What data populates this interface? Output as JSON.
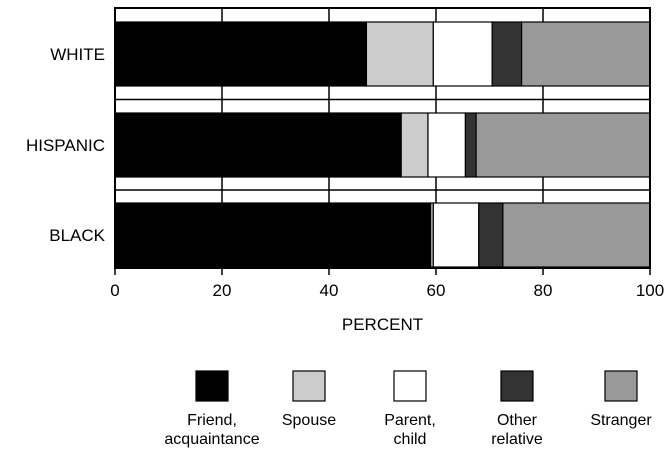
{
  "chart_data": {
    "type": "bar",
    "orientation": "horizontal",
    "stacked": true,
    "categories": [
      "WHITE",
      "HISPANIC",
      "BLACK"
    ],
    "series": [
      {
        "name": "Friend, acquaintance",
        "color": "#000000",
        "values": [
          47,
          53.5,
          59
        ]
      },
      {
        "name": "Spouse",
        "color": "#cccccc",
        "values": [
          12.5,
          5,
          0.5
        ]
      },
      {
        "name": "Parent, child",
        "color": "#ffffff",
        "values": [
          11,
          7,
          8.5
        ]
      },
      {
        "name": "Other relative",
        "color": "#333333",
        "values": [
          5.5,
          2,
          4.5
        ]
      },
      {
        "name": "Stranger",
        "color": "#999999",
        "values": [
          24,
          32.5,
          27.5
        ]
      }
    ],
    "legend_labels": [
      [
        "Friend,",
        "acquaintance"
      ],
      [
        "Spouse"
      ],
      [
        "Parent,",
        "child"
      ],
      [
        "Other",
        "relative"
      ],
      [
        "Stranger"
      ]
    ],
    "xlim": [
      0,
      100
    ],
    "xticks": [
      0,
      20,
      40,
      60,
      80,
      100
    ],
    "xlabel": "PERCENT",
    "grid": true,
    "legend_position": "bottom"
  }
}
